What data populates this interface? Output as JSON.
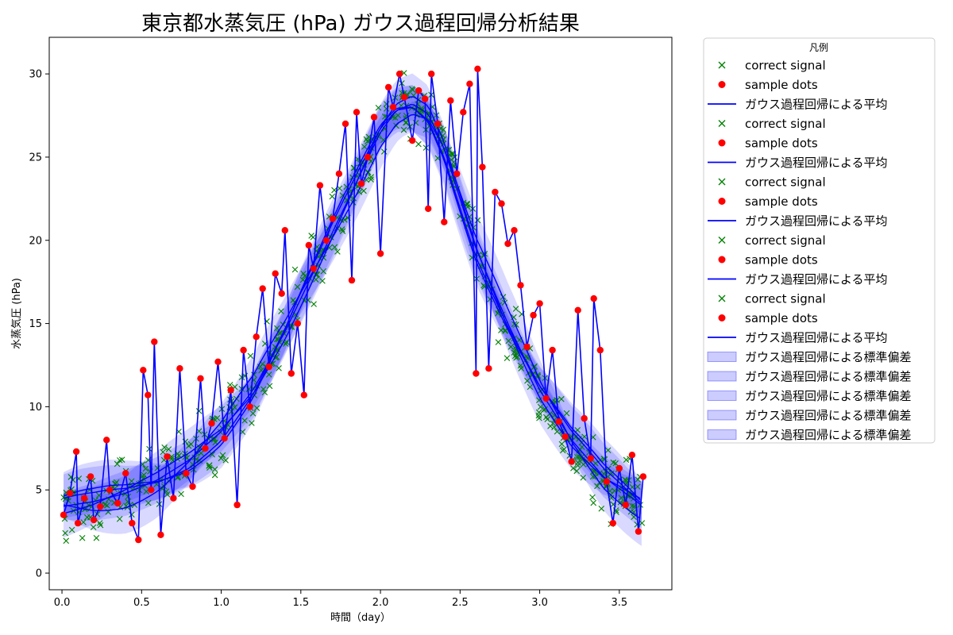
{
  "chart_data": {
    "type": "line",
    "title": "東京都水蒸気圧 (hPa) ガウス過程回帰分析結果",
    "xlabel": "時間（day）",
    "ylabel": "水蒸気圧 (hPa)",
    "xlim": [
      -0.08,
      3.83
    ],
    "ylim": [
      -1,
      32.2
    ],
    "xticks": [
      0.0,
      0.5,
      1.0,
      1.5,
      2.0,
      2.5,
      3.0,
      3.5
    ],
    "xtick_labels": [
      "0.0",
      "0.5",
      "1.0",
      "1.5",
      "2.0",
      "2.5",
      "3.0",
      "3.5"
    ],
    "yticks": [
      0,
      5,
      10,
      15,
      20,
      25,
      30
    ],
    "ytick_labels": [
      "0",
      "5",
      "10",
      "15",
      "20",
      "25",
      "30"
    ],
    "grid": false,
    "legend": {
      "title": "凡例",
      "placement": "outside-upper-right",
      "entries": [
        {
          "label": "correct signal",
          "kind": "x-marker",
          "color": "#008000"
        },
        {
          "label": "sample dots",
          "kind": "dot-marker",
          "color": "#ff0000"
        },
        {
          "label": "ガウス過程回帰による平均",
          "kind": "line",
          "color": "#0000ff"
        },
        {
          "label": "correct signal",
          "kind": "x-marker",
          "color": "#008000"
        },
        {
          "label": "sample dots",
          "kind": "dot-marker",
          "color": "#ff0000"
        },
        {
          "label": "ガウス過程回帰による平均",
          "kind": "line",
          "color": "#0000ff"
        },
        {
          "label": "correct signal",
          "kind": "x-marker",
          "color": "#008000"
        },
        {
          "label": "sample dots",
          "kind": "dot-marker",
          "color": "#ff0000"
        },
        {
          "label": "ガウス過程回帰による平均",
          "kind": "line",
          "color": "#0000ff"
        },
        {
          "label": "correct signal",
          "kind": "x-marker",
          "color": "#008000"
        },
        {
          "label": "sample dots",
          "kind": "dot-marker",
          "color": "#ff0000"
        },
        {
          "label": "ガウス過程回帰による平均",
          "kind": "line",
          "color": "#0000ff"
        },
        {
          "label": "correct signal",
          "kind": "x-marker",
          "color": "#008000"
        },
        {
          "label": "sample dots",
          "kind": "dot-marker",
          "color": "#ff0000"
        },
        {
          "label": "ガウス過程回帰による平均",
          "kind": "line",
          "color": "#0000ff"
        },
        {
          "label": "ガウス過程回帰による標準偏差",
          "kind": "band",
          "color": "#0000ff"
        },
        {
          "label": "ガウス過程回帰による標準偏差",
          "kind": "band",
          "color": "#0000ff"
        },
        {
          "label": "ガウス過程回帰による標準偏差",
          "kind": "band",
          "color": "#0000ff"
        },
        {
          "label": "ガウス過程回帰による標準偏差",
          "kind": "band",
          "color": "#0000ff"
        },
        {
          "label": "ガウス過程回帰による標準偏差",
          "kind": "band",
          "color": "#0000ff"
        }
      ]
    },
    "colors": {
      "correct_signal": "#008000",
      "sample_dots": "#ff0000",
      "mean": "#0000ff",
      "std_band": "#0000ff"
    },
    "trend": {
      "x": [
        0.0,
        0.2,
        0.4,
        0.6,
        0.8,
        1.0,
        1.2,
        1.4,
        1.6,
        1.8,
        2.0,
        2.1,
        2.2,
        2.3,
        2.4,
        2.5,
        2.6,
        2.8,
        3.0,
        3.2,
        3.4,
        3.65
      ],
      "y": [
        4.0,
        4.3,
        4.8,
        5.6,
        6.8,
        8.5,
        11.0,
        14.5,
        18.5,
        22.5,
        26.5,
        27.8,
        28.2,
        27.6,
        25.5,
        22.5,
        19.5,
        15.0,
        11.0,
        8.0,
        5.8,
        4.0
      ]
    },
    "sample_dots": {
      "x": [
        0.01,
        0.05,
        0.09,
        0.1,
        0.14,
        0.18,
        0.2,
        0.24,
        0.28,
        0.3,
        0.35,
        0.4,
        0.44,
        0.48,
        0.51,
        0.54,
        0.56,
        0.58,
        0.62,
        0.66,
        0.7,
        0.74,
        0.78,
        0.82,
        0.87,
        0.9,
        0.94,
        0.98,
        1.02,
        1.06,
        1.1,
        1.14,
        1.18,
        1.22,
        1.26,
        1.3,
        1.34,
        1.38,
        1.4,
        1.44,
        1.48,
        1.52,
        1.55,
        1.58,
        1.62,
        1.66,
        1.7,
        1.74,
        1.78,
        1.82,
        1.85,
        1.88,
        1.92,
        1.96,
        2.0,
        2.05,
        2.08,
        2.12,
        2.15,
        2.2,
        2.24,
        2.28,
        2.3,
        2.32,
        2.36,
        2.4,
        2.44,
        2.48,
        2.52,
        2.56,
        2.6,
        2.61,
        2.64,
        2.68,
        2.72,
        2.76,
        2.8,
        2.84,
        2.88,
        2.92,
        2.96,
        3.0,
        3.04,
        3.08,
        3.12,
        3.16,
        3.2,
        3.24,
        3.28,
        3.32,
        3.34,
        3.38,
        3.42,
        3.46,
        3.5,
        3.54,
        3.58,
        3.62,
        3.65
      ],
      "y": [
        3.5,
        4.8,
        7.3,
        3.0,
        4.5,
        5.8,
        3.2,
        4.0,
        8.0,
        5.0,
        4.2,
        6.0,
        3.0,
        2.0,
        12.2,
        10.7,
        5.0,
        13.9,
        2.3,
        7.0,
        4.5,
        12.3,
        6.0,
        5.2,
        11.7,
        7.5,
        9.0,
        12.7,
        8.1,
        11.0,
        4.1,
        13.4,
        10.0,
        14.2,
        17.1,
        12.4,
        18.0,
        16.8,
        20.6,
        12.0,
        15.0,
        10.7,
        19.7,
        18.3,
        23.3,
        20.0,
        21.3,
        24.0,
        27.0,
        17.6,
        27.7,
        23.4,
        25.0,
        27.4,
        19.2,
        29.2,
        28.0,
        30.0,
        28.6,
        26.0,
        29.0,
        28.5,
        21.9,
        30.0,
        27.0,
        21.1,
        28.4,
        24.0,
        27.7,
        29.4,
        12.0,
        30.3,
        24.4,
        12.3,
        22.9,
        22.2,
        19.8,
        20.6,
        17.3,
        13.6,
        15.5,
        16.2,
        10.5,
        13.4,
        9.1,
        8.2,
        6.7,
        15.8,
        9.3,
        6.9,
        16.5,
        13.4,
        5.5,
        3.0,
        6.3,
        4.1,
        7.1,
        2.5,
        5.8
      ]
    }
  }
}
